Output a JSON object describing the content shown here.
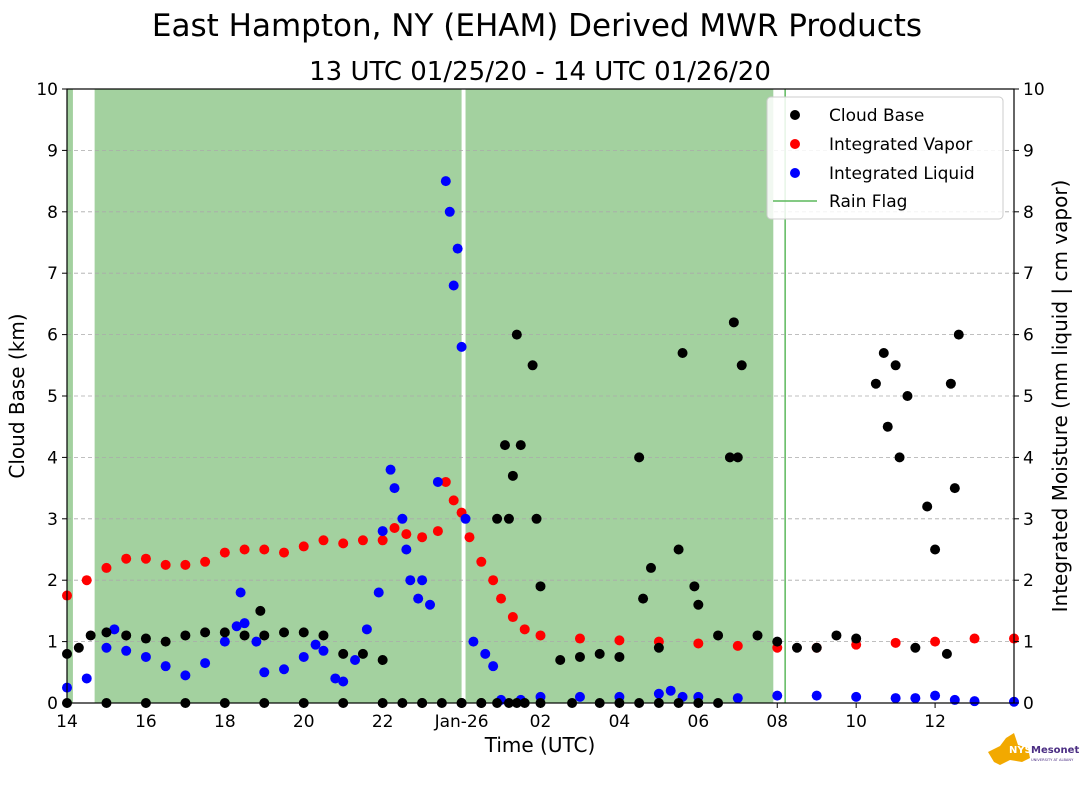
{
  "chart_data": {
    "type": "scatter",
    "title": "East Hampton, NY (EHAM) Derived MWR Products",
    "subtitle": "13 UTC 01/25/20 - 14 UTC 01/26/20",
    "xlabel": "Time (UTC)",
    "ylabel_left": "Cloud Base (km)",
    "ylabel_right": "Integrated Moisture (mm liquid | cm vapor)",
    "xlim": [
      14,
      38
    ],
    "ylim": [
      0,
      10
    ],
    "x_ticks": [
      {
        "x": 14,
        "label": "14"
      },
      {
        "x": 16,
        "label": "16"
      },
      {
        "x": 18,
        "label": "18"
      },
      {
        "x": 20,
        "label": "20"
      },
      {
        "x": 22,
        "label": "22"
      },
      {
        "x": 24,
        "label": "Jan-26"
      },
      {
        "x": 26,
        "label": "02"
      },
      {
        "x": 28,
        "label": "04"
      },
      {
        "x": 30,
        "label": "06"
      },
      {
        "x": 32,
        "label": "08"
      },
      {
        "x": 34,
        "label": "10"
      },
      {
        "x": 36,
        "label": "12"
      }
    ],
    "y_ticks": [
      "0",
      "1",
      "2",
      "3",
      "4",
      "5",
      "6",
      "7",
      "8",
      "9",
      "10"
    ],
    "grid": true,
    "legend_position": "top-right",
    "legend": [
      {
        "label": "Cloud Base",
        "color": "#000000",
        "kind": "point"
      },
      {
        "label": "Integrated Vapor",
        "color": "#ff0000",
        "kind": "point"
      },
      {
        "label": "Integrated Liquid",
        "color": "#0000ff",
        "kind": "point"
      },
      {
        "label": "Rain Flag",
        "color": "#5cb85c",
        "kind": "line"
      }
    ],
    "rain_flag": {
      "color": "#a3d19f",
      "periods": [
        [
          14.0,
          14.15
        ],
        [
          14.7,
          24.0
        ],
        [
          24.1,
          31.9
        ]
      ],
      "isolated_lines": [
        32.2
      ]
    },
    "series": [
      {
        "name": "Integrated Vapor",
        "color": "#ff0000",
        "x": [
          14.0,
          14.5,
          15.0,
          15.5,
          16.0,
          16.5,
          17.0,
          17.5,
          18.0,
          18.5,
          19.0,
          19.5,
          20.0,
          20.5,
          21.0,
          21.5,
          22.0,
          22.3,
          22.6,
          23.0,
          23.4,
          23.6,
          23.8,
          24.0,
          24.2,
          24.5,
          24.8,
          25.0,
          25.3,
          25.6,
          26.0,
          27.0,
          28.0,
          29.0,
          30.0,
          31.0,
          32.0,
          33.0,
          34.0,
          35.0,
          36.0,
          37.0,
          38.0
        ],
        "values": [
          1.75,
          2.0,
          2.2,
          2.35,
          2.35,
          2.25,
          2.25,
          2.3,
          2.45,
          2.5,
          2.5,
          2.45,
          2.55,
          2.65,
          2.6,
          2.65,
          2.65,
          2.85,
          2.75,
          2.7,
          2.8,
          3.6,
          3.3,
          3.1,
          2.7,
          2.3,
          2.0,
          1.7,
          1.4,
          1.2,
          1.1,
          1.05,
          1.02,
          1.0,
          0.97,
          0.93,
          0.9,
          0.9,
          0.95,
          0.98,
          1.0,
          1.05,
          1.05
        ]
      },
      {
        "name": "Integrated Liquid",
        "color": "#0000ff",
        "x": [
          14.0,
          14.5,
          15.0,
          15.2,
          15.5,
          16.0,
          16.5,
          17.0,
          17.5,
          18.0,
          18.3,
          18.4,
          18.5,
          18.8,
          19.0,
          19.5,
          20.0,
          20.3,
          20.5,
          20.8,
          21.0,
          21.3,
          21.6,
          21.9,
          22.0,
          22.2,
          22.3,
          22.5,
          22.6,
          22.7,
          22.9,
          23.0,
          23.2,
          23.4,
          23.6,
          23.7,
          23.8,
          23.9,
          24.0,
          24.1,
          24.3,
          24.6,
          24.8,
          25.0,
          25.5,
          26.0,
          27.0,
          28.0,
          29.0,
          29.3,
          29.6,
          30.0,
          31.0,
          32.0,
          33.0,
          34.0,
          35.0,
          35.5,
          36.0,
          36.5,
          37.0,
          38.0
        ],
        "values": [
          0.25,
          0.4,
          0.9,
          1.2,
          0.85,
          0.75,
          0.6,
          0.45,
          0.65,
          1.0,
          1.25,
          1.8,
          1.3,
          1.0,
          0.5,
          0.55,
          0.75,
          0.95,
          0.85,
          0.4,
          0.35,
          0.7,
          1.2,
          1.8,
          2.8,
          3.8,
          3.5,
          3.0,
          2.5,
          2.0,
          1.7,
          2.0,
          1.6,
          3.6,
          8.5,
          8.0,
          6.8,
          7.4,
          5.8,
          3.0,
          1.0,
          0.8,
          0.6,
          0.05,
          0.05,
          0.1,
          0.1,
          0.1,
          0.15,
          0.2,
          0.1,
          0.1,
          0.08,
          0.12,
          0.12,
          0.1,
          0.08,
          0.08,
          0.12,
          0.05,
          0.03,
          0.02
        ]
      },
      {
        "name": "Cloud Base",
        "color": "#000000",
        "x": [
          14.0,
          14.3,
          14.6,
          15.0,
          15.5,
          16.0,
          16.5,
          17.0,
          17.5,
          18.0,
          18.5,
          18.9,
          19.0,
          19.5,
          20.0,
          20.5,
          21.0,
          21.5,
          22.0,
          22.5,
          23.0,
          23.5,
          24.0,
          24.5,
          24.9,
          25.1,
          25.2,
          25.3,
          25.4,
          25.5,
          25.8,
          25.9,
          26.0,
          26.5,
          27.0,
          27.5,
          28.0,
          28.5,
          28.6,
          28.8,
          29.0,
          29.5,
          29.6,
          29.9,
          30.0,
          30.5,
          30.8,
          30.9,
          31.0,
          31.1,
          31.5,
          32.0,
          32.5,
          33.0,
          33.5,
          34.0,
          34.5,
          34.7,
          34.8,
          35.0,
          35.1,
          35.3,
          35.5,
          35.8,
          36.0,
          36.3,
          36.4,
          36.5,
          36.6,
          14.0,
          15.0,
          16.0,
          17.0,
          18.0,
          19.0,
          20.0,
          21.0,
          22.0,
          23.0,
          24.0,
          24.5,
          24.9,
          25.2,
          25.4,
          25.6,
          26.0,
          26.8,
          27.5,
          28.0,
          28.5,
          29.0,
          29.5,
          30.0,
          30.5
        ],
        "values": [
          0.8,
          0.9,
          1.1,
          1.15,
          1.1,
          1.05,
          1.0,
          1.1,
          1.15,
          1.15,
          1.1,
          1.5,
          1.1,
          1.15,
          1.15,
          1.1,
          0.8,
          0.8,
          0.7,
          0.0,
          0.0,
          0.0,
          0.0,
          0.0,
          3.0,
          4.2,
          3.0,
          3.7,
          6.0,
          4.2,
          5.5,
          3.0,
          1.9,
          0.7,
          0.75,
          0.8,
          0.75,
          4.0,
          1.7,
          2.2,
          0.9,
          2.5,
          5.7,
          1.9,
          1.6,
          1.1,
          4.0,
          6.2,
          4.0,
          5.5,
          1.1,
          1.0,
          0.9,
          0.9,
          1.1,
          1.05,
          5.2,
          5.7,
          4.5,
          5.5,
          4.0,
          5.0,
          0.9,
          3.2,
          2.5,
          0.8,
          5.2,
          3.5,
          6.0,
          0.0,
          0.0,
          0.0,
          0.0,
          0.0,
          0.0,
          0.0,
          0.0,
          0.0,
          0.0,
          0.0,
          0.0,
          0.0,
          0.0,
          0.0,
          0.0,
          0.0,
          0.0,
          0.0,
          0.0,
          0.0,
          0.0,
          0.0,
          0.0,
          0.0
        ]
      }
    ]
  },
  "logo": {
    "text": "NYS Mesonet",
    "subtext": "UNIVERSITY AT ALBANY",
    "state_color": "#f2a900",
    "text_color": "#4b2e83"
  }
}
